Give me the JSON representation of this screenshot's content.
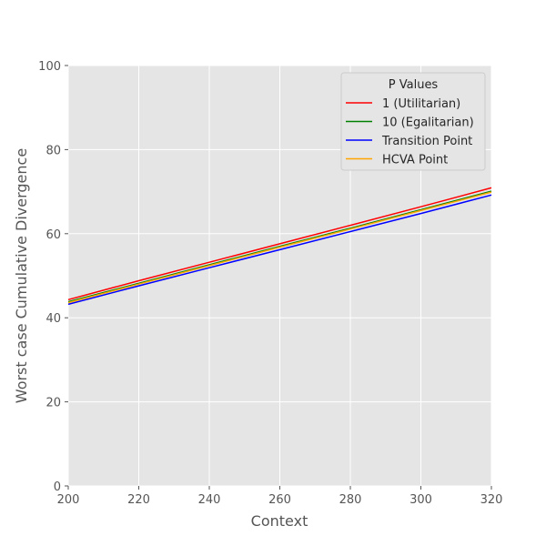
{
  "chart_data": {
    "type": "line",
    "title": "",
    "xlabel": "Context",
    "ylabel": "Worst case Cumulative Divergence",
    "xlim": [
      200,
      320
    ],
    "ylim": [
      0,
      100
    ],
    "x_ticks": [
      "200",
      "220",
      "240",
      "260",
      "280",
      "300",
      "320"
    ],
    "y_ticks": [
      "0",
      "20",
      "40",
      "60",
      "80",
      "100"
    ],
    "grid": true,
    "legend": {
      "title": "P Values",
      "position": "top-right"
    },
    "x": [
      200,
      220,
      240,
      260,
      280,
      300,
      320
    ],
    "series": [
      {
        "name": "1 (Utilitarian)",
        "color": "#ff0000",
        "values": [
          44.3,
          48.8,
          53.2,
          57.6,
          62.0,
          66.4,
          70.9
        ]
      },
      {
        "name": "10 (Egalitarian)",
        "color": "#008000",
        "values": [
          43.8,
          48.2,
          52.6,
          57.0,
          61.3,
          65.7,
          70.1
        ]
      },
      {
        "name": "Transition Point",
        "color": "#0000ff",
        "values": [
          43.2,
          47.6,
          51.9,
          56.2,
          60.5,
          64.8,
          69.2
        ]
      },
      {
        "name": "HCVA Point",
        "color": "#ffa500",
        "values": [
          43.6,
          48.0,
          52.4,
          56.8,
          61.1,
          65.5,
          69.9
        ]
      }
    ]
  }
}
